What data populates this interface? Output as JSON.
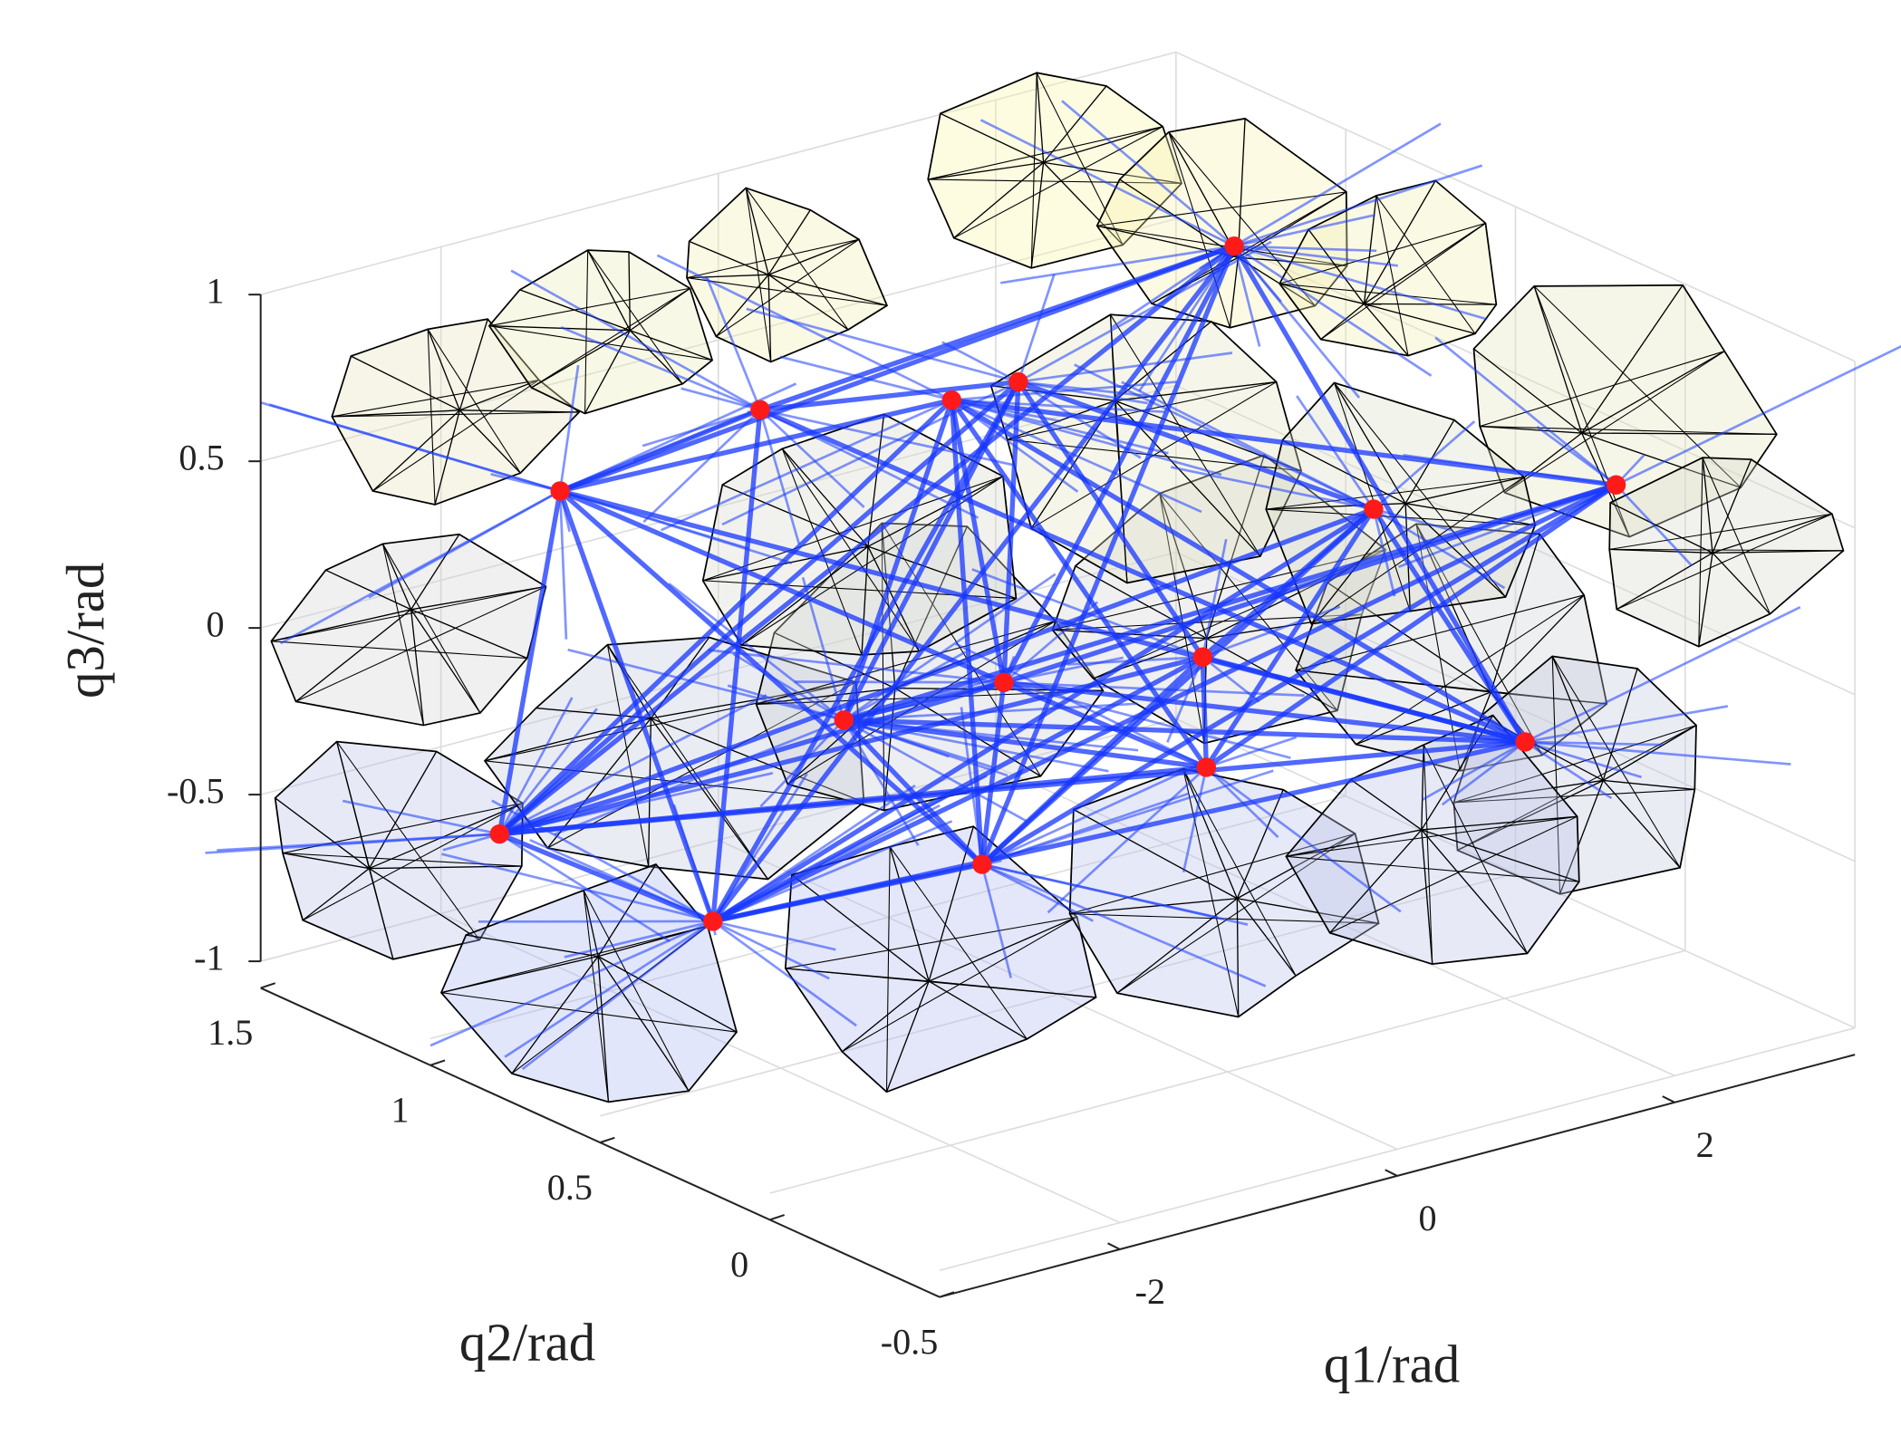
{
  "chart_data": {
    "type": "mesh3d",
    "xlabel": "q1/rad",
    "ylabel": "q2/rad",
    "zlabel": "q3/rad",
    "xlim": [
      -3.3,
      3.3
    ],
    "ylim": [
      -0.5,
      1.5
    ],
    "zlim": [
      -1,
      1
    ],
    "xticks": [
      -2,
      0,
      2
    ],
    "yticks": [
      -0.5,
      0,
      0.5,
      1,
      1.5
    ],
    "zticks": [
      -1,
      -0.5,
      0,
      0.5,
      1
    ],
    "grid": true
  }
}
